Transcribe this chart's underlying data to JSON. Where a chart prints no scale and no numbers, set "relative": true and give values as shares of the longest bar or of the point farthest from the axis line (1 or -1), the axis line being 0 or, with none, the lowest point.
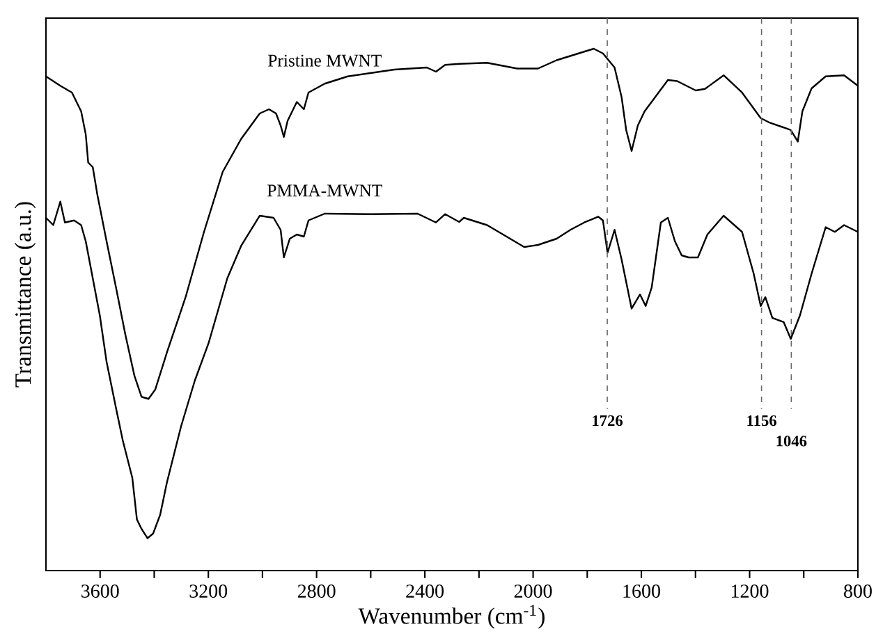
{
  "chart_data": {
    "type": "line",
    "relative": true,
    "xlabel": "Wavenumber (cm$^{-1}$)",
    "ylabel": "Transmittance (a.u.)",
    "xlim": [
      3800,
      800
    ],
    "xticks": [
      3600,
      {
        "value": 3400,
        "label": null
      },
      3200,
      {
        "value": 3000,
        "label": null
      },
      2800,
      {
        "value": 2600,
        "label": null
      },
      2400,
      {
        "value": 2200,
        "label": null
      },
      2000,
      {
        "value": 1800,
        "label": null
      },
      1600,
      {
        "value": 1400,
        "label": null
      },
      1200,
      {
        "value": 1000,
        "label": null
      },
      800
    ],
    "grid": false,
    "legend": false,
    "marker": "none",
    "line_style": "solid",
    "series": [
      {
        "name": "Pristine MWNT",
        "color": "#000000",
        "x": [
          3800,
          3747,
          3704,
          3670,
          3653,
          3644,
          3627,
          3610,
          3576,
          3541,
          3507,
          3473,
          3447,
          3421,
          3396,
          3353,
          3284,
          3216,
          3147,
          3079,
          3010,
          2976,
          2950,
          2933,
          2921,
          2907,
          2873,
          2847,
          2830,
          2770,
          2685,
          2513,
          2393,
          2359,
          2325,
          2273,
          2170,
          2059,
          1982,
          1913,
          1776,
          1742,
          1699,
          1673,
          1656,
          1636,
          1613,
          1588,
          1502,
          1468,
          1399,
          1365,
          1296,
          1228,
          1159,
          1125,
          1074,
          1048,
          1022,
          1005,
          971,
          919,
          851,
          800
        ],
        "values": [
          0.947,
          0.929,
          0.916,
          0.88,
          0.836,
          0.782,
          0.773,
          0.72,
          0.631,
          0.542,
          0.453,
          0.373,
          0.333,
          0.329,
          0.347,
          0.418,
          0.524,
          0.649,
          0.764,
          0.827,
          0.876,
          0.884,
          0.876,
          0.853,
          0.831,
          0.862,
          0.898,
          0.884,
          0.916,
          0.933,
          0.947,
          0.96,
          0.964,
          0.956,
          0.969,
          0.971,
          0.973,
          0.962,
          0.962,
          0.978,
          1.0,
          0.991,
          0.964,
          0.907,
          0.844,
          0.804,
          0.853,
          0.88,
          0.94,
          0.938,
          0.92,
          0.923,
          0.949,
          0.916,
          0.867,
          0.858,
          0.849,
          0.844,
          0.822,
          0.88,
          0.924,
          0.947,
          0.949,
          0.929
        ]
      },
      {
        "name": "PMMA-MWNT",
        "color": "#000000",
        "x": [
          3800,
          3773,
          3747,
          3730,
          3696,
          3670,
          3653,
          3627,
          3601,
          3576,
          3541,
          3516,
          3481,
          3464,
          3447,
          3425,
          3404,
          3378,
          3353,
          3301,
          3250,
          3199,
          3130,
          3079,
          3010,
          2959,
          2933,
          2921,
          2899,
          2873,
          2847,
          2830,
          2770,
          2599,
          2427,
          2359,
          2325,
          2273,
          2256,
          2170,
          2085,
          2033,
          1982,
          1913,
          1862,
          1811,
          1759,
          1742,
          1725,
          1699,
          1673,
          1636,
          1605,
          1584,
          1562,
          1528,
          1502,
          1476,
          1451,
          1425,
          1391,
          1356,
          1296,
          1228,
          1185,
          1159,
          1142,
          1116,
          1074,
          1048,
          1014,
          971,
          919,
          885,
          851,
          800
        ],
        "values": [
          0.676,
          0.662,
          0.707,
          0.667,
          0.671,
          0.662,
          0.631,
          0.56,
          0.489,
          0.4,
          0.311,
          0.249,
          0.178,
          0.098,
          0.08,
          0.062,
          0.071,
          0.107,
          0.169,
          0.276,
          0.364,
          0.436,
          0.56,
          0.622,
          0.68,
          0.676,
          0.653,
          0.6,
          0.636,
          0.644,
          0.64,
          0.671,
          0.684,
          0.683,
          0.684,
          0.667,
          0.683,
          0.668,
          0.676,
          0.662,
          0.636,
          0.62,
          0.624,
          0.636,
          0.653,
          0.667,
          0.678,
          0.671,
          0.609,
          0.653,
          0.596,
          0.502,
          0.529,
          0.507,
          0.542,
          0.667,
          0.676,
          0.631,
          0.604,
          0.6,
          0.6,
          0.644,
          0.68,
          0.649,
          0.569,
          0.507,
          0.524,
          0.484,
          0.476,
          0.444,
          0.489,
          0.569,
          0.658,
          0.649,
          0.662,
          0.649
        ]
      }
    ],
    "ref_lines": [
      {
        "axis": "x",
        "value": 1726,
        "label": "1726",
        "color": "#666666",
        "line_style": "dashed"
      },
      {
        "axis": "x",
        "value": 1156,
        "label": "1156",
        "color": "#666666",
        "line_style": "dashed"
      },
      {
        "axis": "x",
        "value": 1046,
        "label": "1046",
        "color": "#666666",
        "line_style": "dashed"
      }
    ]
  }
}
